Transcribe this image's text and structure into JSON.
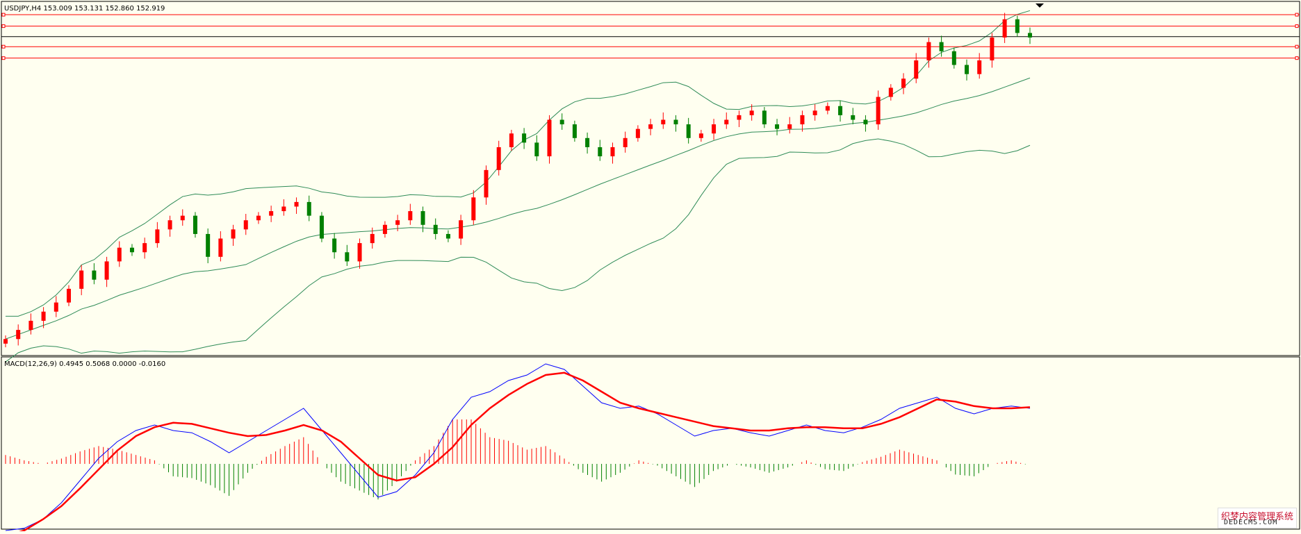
{
  "header": {
    "symbol_line": "USDJPY,H4  153.009 153.131 152.860 152.919",
    "macd_line": "MACD(12,26,9) 0.4945 0.5068 0.0000 -0.0160"
  },
  "colors": {
    "background": "#fffff0",
    "bull": "#ff0000",
    "bear": "#008000",
    "bands": "#2e8b57",
    "hline": "#ff0000",
    "current_price_line": "#000000",
    "macd": "#0000ff",
    "signal": "#ff0000"
  },
  "watermark": {
    "cn": "织梦内容管理系统",
    "en": "DEDECMS.COM"
  },
  "chart_data": [
    {
      "type": "candlestick",
      "symbol": "USDJPY",
      "timeframe": "H4",
      "ohlc_last": {
        "open": 153.009,
        "high": 153.131,
        "low": 152.86,
        "close": 152.919
      },
      "indicators": [
        "Bollinger Bands"
      ],
      "horizontal_lines": [
        153.4,
        153.15,
        152.7,
        152.45
      ],
      "current_price": 152.92,
      "ylim": [
        146.0,
        153.6
      ],
      "approx_closes": [
        146.3,
        146.5,
        146.7,
        146.9,
        147.1,
        147.4,
        147.8,
        147.6,
        148.0,
        148.3,
        148.2,
        148.4,
        148.7,
        148.9,
        149.0,
        148.6,
        148.1,
        148.5,
        148.7,
        148.9,
        149.0,
        149.1,
        149.2,
        149.3,
        149.0,
        148.5,
        148.2,
        148.0,
        148.4,
        148.6,
        148.8,
        148.9,
        149.1,
        148.8,
        148.6,
        148.5,
        148.9,
        149.4,
        150.0,
        150.5,
        150.8,
        150.6,
        150.3,
        151.1,
        151.0,
        150.7,
        150.5,
        150.3,
        150.5,
        150.7,
        150.9,
        151.0,
        151.1,
        151.0,
        150.7,
        150.8,
        151.0,
        151.1,
        151.2,
        151.3,
        151.0,
        150.9,
        151.0,
        151.2,
        151.3,
        151.4,
        151.2,
        151.1,
        151.0,
        151.6,
        151.8,
        152.0,
        152.4,
        152.8,
        152.6,
        152.3,
        152.1,
        152.4,
        152.9,
        153.3,
        153.0,
        152.9
      ]
    },
    {
      "type": "line",
      "title": "MACD(12,26,9)",
      "values_shown": [
        0.4945,
        0.5068,
        0.0,
        -0.016
      ],
      "series": [
        {
          "name": "MACD",
          "values": [
            -0.6,
            -0.58,
            -0.5,
            -0.35,
            -0.15,
            0.05,
            0.2,
            0.3,
            0.35,
            0.3,
            0.28,
            0.2,
            0.1,
            0.2,
            0.3,
            0.4,
            0.5,
            0.3,
            0.1,
            -0.1,
            -0.3,
            -0.25,
            -0.1,
            0.1,
            0.4,
            0.6,
            0.65,
            0.75,
            0.8,
            0.9,
            0.85,
            0.7,
            0.55,
            0.5,
            0.52,
            0.45,
            0.35,
            0.25,
            0.3,
            0.32,
            0.28,
            0.25,
            0.3,
            0.35,
            0.3,
            0.28,
            0.33,
            0.4,
            0.5,
            0.55,
            0.6,
            0.5,
            0.45,
            0.5,
            0.52,
            0.5
          ]
        },
        {
          "name": "Signal",
          "values": [
            -0.65,
            -0.6,
            -0.5,
            -0.38,
            -0.22,
            -0.05,
            0.12,
            0.25,
            0.33,
            0.37,
            0.36,
            0.32,
            0.28,
            0.25,
            0.26,
            0.3,
            0.35,
            0.3,
            0.2,
            0.05,
            -0.1,
            -0.15,
            -0.12,
            0.0,
            0.15,
            0.35,
            0.5,
            0.62,
            0.72,
            0.8,
            0.82,
            0.75,
            0.65,
            0.55,
            0.5,
            0.46,
            0.42,
            0.38,
            0.34,
            0.32,
            0.3,
            0.3,
            0.32,
            0.33,
            0.33,
            0.32,
            0.32,
            0.36,
            0.42,
            0.5,
            0.58,
            0.56,
            0.52,
            0.5,
            0.5,
            0.51
          ]
        }
      ]
    }
  ]
}
